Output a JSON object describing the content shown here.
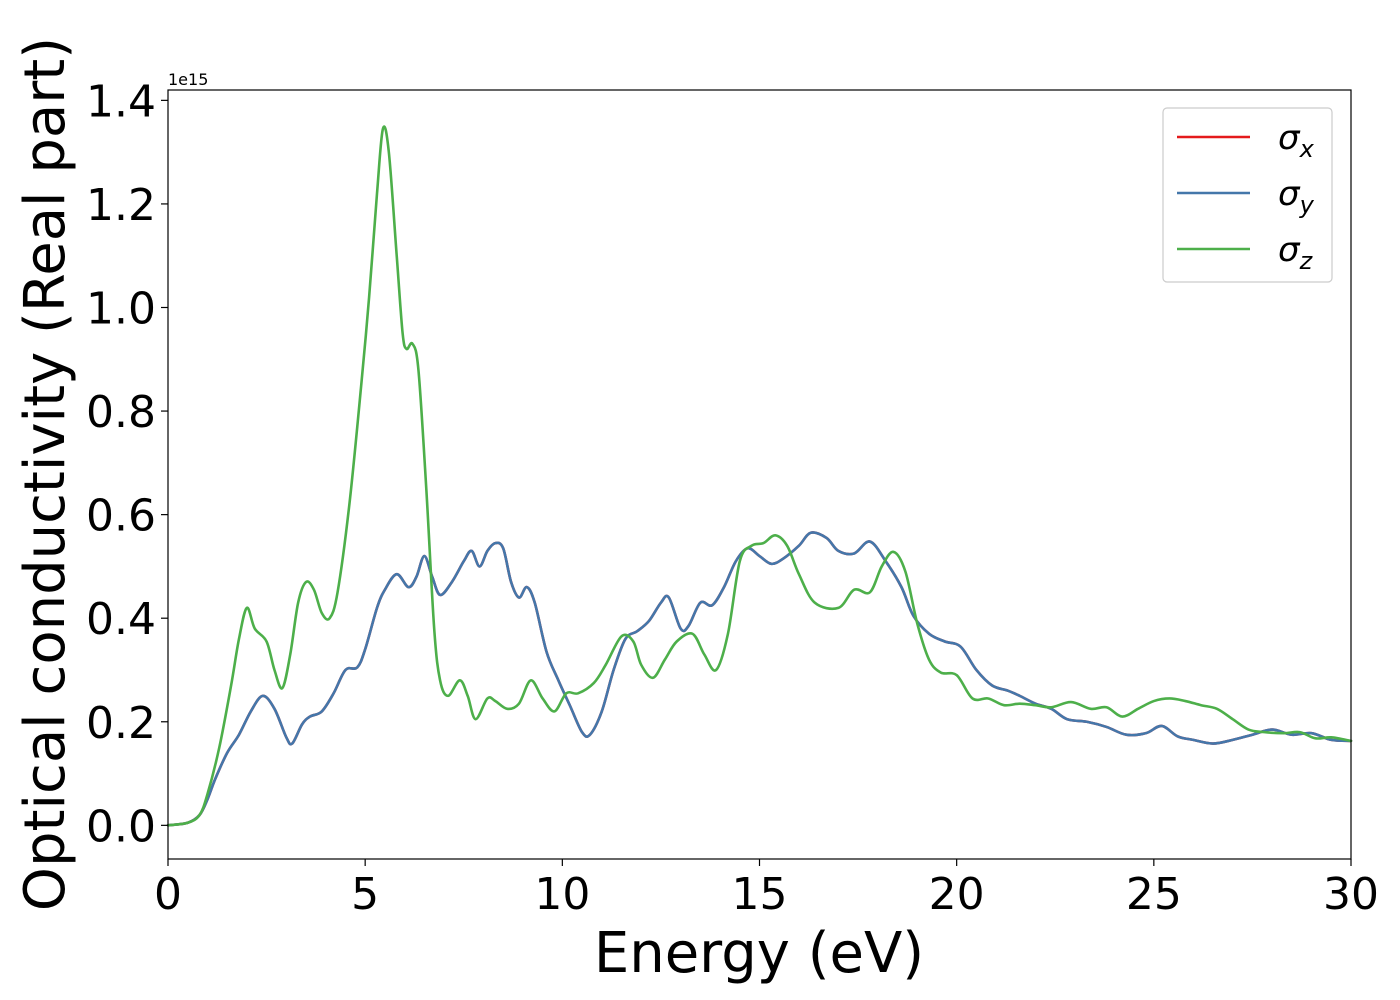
{
  "chart_data": {
    "type": "line",
    "xlabel": "Energy (eV)",
    "ylabel": "Optical conductivity (Real part)",
    "y_offset_text": "1e15",
    "xlim": [
      0,
      30
    ],
    "ylim": [
      -0.065,
      1.42
    ],
    "x_ticks": [
      0,
      5,
      10,
      15,
      20,
      25,
      30
    ],
    "y_ticks": [
      0.0,
      0.2,
      0.4,
      0.6,
      0.8,
      1.0,
      1.2,
      1.4
    ],
    "x_tick_labels": [
      "0",
      "5",
      "10",
      "15",
      "20",
      "25",
      "30"
    ],
    "y_tick_labels": [
      "0.0",
      "0.2",
      "0.4",
      "0.6",
      "0.8",
      "1.0",
      "1.2",
      "1.4"
    ],
    "grid": false,
    "legend_position": "top-right",
    "series": [
      {
        "name": "σx",
        "legend_symbol": "σ",
        "legend_subscript": "x",
        "color": "#e41a1c",
        "points": [
          [
            0,
            0.0
          ],
          [
            0.5,
            0.005
          ],
          [
            0.8,
            0.02
          ],
          [
            1.0,
            0.05
          ],
          [
            1.2,
            0.09
          ],
          [
            1.5,
            0.14
          ],
          [
            1.8,
            0.175
          ],
          [
            2.1,
            0.22
          ],
          [
            2.4,
            0.25
          ],
          [
            2.7,
            0.225
          ],
          [
            3.0,
            0.17
          ],
          [
            3.15,
            0.158
          ],
          [
            3.4,
            0.195
          ],
          [
            3.6,
            0.21
          ],
          [
            3.9,
            0.22
          ],
          [
            4.2,
            0.255
          ],
          [
            4.5,
            0.3
          ],
          [
            4.8,
            0.305
          ],
          [
            5.0,
            0.34
          ],
          [
            5.3,
            0.42
          ],
          [
            5.5,
            0.455
          ],
          [
            5.8,
            0.485
          ],
          [
            6.1,
            0.46
          ],
          [
            6.3,
            0.48
          ],
          [
            6.5,
            0.52
          ],
          [
            6.7,
            0.48
          ],
          [
            6.9,
            0.445
          ],
          [
            7.2,
            0.47
          ],
          [
            7.5,
            0.51
          ],
          [
            7.7,
            0.53
          ],
          [
            7.9,
            0.5
          ],
          [
            8.1,
            0.53
          ],
          [
            8.3,
            0.545
          ],
          [
            8.5,
            0.535
          ],
          [
            8.7,
            0.47
          ],
          [
            8.9,
            0.44
          ],
          [
            9.1,
            0.46
          ],
          [
            9.3,
            0.43
          ],
          [
            9.6,
            0.335
          ],
          [
            9.9,
            0.28
          ],
          [
            10.2,
            0.23
          ],
          [
            10.5,
            0.18
          ],
          [
            10.7,
            0.175
          ],
          [
            11.0,
            0.22
          ],
          [
            11.3,
            0.3
          ],
          [
            11.6,
            0.36
          ],
          [
            11.9,
            0.375
          ],
          [
            12.2,
            0.395
          ],
          [
            12.5,
            0.43
          ],
          [
            12.7,
            0.44
          ],
          [
            13.0,
            0.38
          ],
          [
            13.2,
            0.385
          ],
          [
            13.5,
            0.43
          ],
          [
            13.8,
            0.425
          ],
          [
            14.1,
            0.46
          ],
          [
            14.4,
            0.51
          ],
          [
            14.7,
            0.535
          ],
          [
            15.0,
            0.52
          ],
          [
            15.3,
            0.505
          ],
          [
            15.6,
            0.515
          ],
          [
            16.0,
            0.54
          ],
          [
            16.3,
            0.565
          ],
          [
            16.7,
            0.555
          ],
          [
            17.0,
            0.53
          ],
          [
            17.4,
            0.525
          ],
          [
            17.8,
            0.548
          ],
          [
            18.2,
            0.51
          ],
          [
            18.6,
            0.46
          ],
          [
            18.9,
            0.405
          ],
          [
            19.3,
            0.37
          ],
          [
            19.7,
            0.355
          ],
          [
            20.1,
            0.345
          ],
          [
            20.5,
            0.3
          ],
          [
            20.9,
            0.27
          ],
          [
            21.3,
            0.26
          ],
          [
            21.6,
            0.25
          ],
          [
            22.0,
            0.235
          ],
          [
            22.4,
            0.225
          ],
          [
            22.8,
            0.205
          ],
          [
            23.3,
            0.2
          ],
          [
            23.8,
            0.19
          ],
          [
            24.3,
            0.175
          ],
          [
            24.8,
            0.178
          ],
          [
            25.2,
            0.192
          ],
          [
            25.6,
            0.172
          ],
          [
            26.0,
            0.165
          ],
          [
            26.5,
            0.158
          ],
          [
            27.0,
            0.165
          ],
          [
            27.5,
            0.175
          ],
          [
            28.0,
            0.185
          ],
          [
            28.5,
            0.175
          ],
          [
            29.0,
            0.178
          ],
          [
            29.5,
            0.165
          ],
          [
            30.0,
            0.163
          ]
        ]
      },
      {
        "name": "σy",
        "legend_symbol": "σ",
        "legend_subscript": "y",
        "color": "#4477aa",
        "points": [
          [
            0,
            0.0
          ],
          [
            0.5,
            0.005
          ],
          [
            0.8,
            0.02
          ],
          [
            1.0,
            0.05
          ],
          [
            1.2,
            0.09
          ],
          [
            1.5,
            0.14
          ],
          [
            1.8,
            0.175
          ],
          [
            2.1,
            0.22
          ],
          [
            2.4,
            0.25
          ],
          [
            2.7,
            0.225
          ],
          [
            3.0,
            0.17
          ],
          [
            3.15,
            0.158
          ],
          [
            3.4,
            0.195
          ],
          [
            3.6,
            0.21
          ],
          [
            3.9,
            0.22
          ],
          [
            4.2,
            0.255
          ],
          [
            4.5,
            0.3
          ],
          [
            4.8,
            0.305
          ],
          [
            5.0,
            0.34
          ],
          [
            5.3,
            0.42
          ],
          [
            5.5,
            0.455
          ],
          [
            5.8,
            0.485
          ],
          [
            6.1,
            0.46
          ],
          [
            6.3,
            0.48
          ],
          [
            6.5,
            0.52
          ],
          [
            6.7,
            0.48
          ],
          [
            6.9,
            0.445
          ],
          [
            7.2,
            0.47
          ],
          [
            7.5,
            0.51
          ],
          [
            7.7,
            0.53
          ],
          [
            7.9,
            0.5
          ],
          [
            8.1,
            0.53
          ],
          [
            8.3,
            0.545
          ],
          [
            8.5,
            0.535
          ],
          [
            8.7,
            0.47
          ],
          [
            8.9,
            0.44
          ],
          [
            9.1,
            0.46
          ],
          [
            9.3,
            0.43
          ],
          [
            9.6,
            0.335
          ],
          [
            9.9,
            0.28
          ],
          [
            10.2,
            0.23
          ],
          [
            10.5,
            0.18
          ],
          [
            10.7,
            0.175
          ],
          [
            11.0,
            0.22
          ],
          [
            11.3,
            0.3
          ],
          [
            11.6,
            0.36
          ],
          [
            11.9,
            0.375
          ],
          [
            12.2,
            0.395
          ],
          [
            12.5,
            0.43
          ],
          [
            12.7,
            0.44
          ],
          [
            13.0,
            0.38
          ],
          [
            13.2,
            0.385
          ],
          [
            13.5,
            0.43
          ],
          [
            13.8,
            0.425
          ],
          [
            14.1,
            0.46
          ],
          [
            14.4,
            0.51
          ],
          [
            14.7,
            0.535
          ],
          [
            15.0,
            0.52
          ],
          [
            15.3,
            0.505
          ],
          [
            15.6,
            0.515
          ],
          [
            16.0,
            0.54
          ],
          [
            16.3,
            0.565
          ],
          [
            16.7,
            0.555
          ],
          [
            17.0,
            0.53
          ],
          [
            17.4,
            0.525
          ],
          [
            17.8,
            0.548
          ],
          [
            18.2,
            0.51
          ],
          [
            18.6,
            0.46
          ],
          [
            18.9,
            0.405
          ],
          [
            19.3,
            0.37
          ],
          [
            19.7,
            0.355
          ],
          [
            20.1,
            0.345
          ],
          [
            20.5,
            0.3
          ],
          [
            20.9,
            0.27
          ],
          [
            21.3,
            0.26
          ],
          [
            21.6,
            0.25
          ],
          [
            22.0,
            0.235
          ],
          [
            22.4,
            0.225
          ],
          [
            22.8,
            0.205
          ],
          [
            23.3,
            0.2
          ],
          [
            23.8,
            0.19
          ],
          [
            24.3,
            0.175
          ],
          [
            24.8,
            0.178
          ],
          [
            25.2,
            0.192
          ],
          [
            25.6,
            0.172
          ],
          [
            26.0,
            0.165
          ],
          [
            26.5,
            0.158
          ],
          [
            27.0,
            0.165
          ],
          [
            27.5,
            0.175
          ],
          [
            28.0,
            0.185
          ],
          [
            28.5,
            0.175
          ],
          [
            29.0,
            0.178
          ],
          [
            29.5,
            0.165
          ],
          [
            30.0,
            0.163
          ]
        ]
      },
      {
        "name": "σz",
        "legend_symbol": "σ",
        "legend_subscript": "z",
        "color": "#4daf4a",
        "points": [
          [
            0,
            0.0
          ],
          [
            0.5,
            0.005
          ],
          [
            0.8,
            0.02
          ],
          [
            1.0,
            0.06
          ],
          [
            1.3,
            0.15
          ],
          [
            1.6,
            0.27
          ],
          [
            1.8,
            0.36
          ],
          [
            2.0,
            0.42
          ],
          [
            2.2,
            0.38
          ],
          [
            2.5,
            0.355
          ],
          [
            2.7,
            0.3
          ],
          [
            2.9,
            0.265
          ],
          [
            3.1,
            0.33
          ],
          [
            3.3,
            0.43
          ],
          [
            3.5,
            0.47
          ],
          [
            3.7,
            0.455
          ],
          [
            3.9,
            0.41
          ],
          [
            4.1,
            0.4
          ],
          [
            4.3,
            0.45
          ],
          [
            4.6,
            0.62
          ],
          [
            4.9,
            0.85
          ],
          [
            5.1,
            1.02
          ],
          [
            5.3,
            1.22
          ],
          [
            5.45,
            1.345
          ],
          [
            5.6,
            1.3
          ],
          [
            5.8,
            1.1
          ],
          [
            5.95,
            0.95
          ],
          [
            6.05,
            0.92
          ],
          [
            6.2,
            0.93
          ],
          [
            6.35,
            0.88
          ],
          [
            6.55,
            0.65
          ],
          [
            6.75,
            0.38
          ],
          [
            6.9,
            0.28
          ],
          [
            7.1,
            0.25
          ],
          [
            7.4,
            0.28
          ],
          [
            7.6,
            0.25
          ],
          [
            7.8,
            0.205
          ],
          [
            8.1,
            0.245
          ],
          [
            8.3,
            0.24
          ],
          [
            8.6,
            0.225
          ],
          [
            8.9,
            0.235
          ],
          [
            9.2,
            0.28
          ],
          [
            9.5,
            0.245
          ],
          [
            9.8,
            0.22
          ],
          [
            10.1,
            0.255
          ],
          [
            10.4,
            0.255
          ],
          [
            10.8,
            0.275
          ],
          [
            11.1,
            0.31
          ],
          [
            11.5,
            0.365
          ],
          [
            11.8,
            0.355
          ],
          [
            12.0,
            0.31
          ],
          [
            12.3,
            0.285
          ],
          [
            12.6,
            0.32
          ],
          [
            12.9,
            0.355
          ],
          [
            13.3,
            0.37
          ],
          [
            13.6,
            0.33
          ],
          [
            13.9,
            0.3
          ],
          [
            14.2,
            0.37
          ],
          [
            14.5,
            0.51
          ],
          [
            14.8,
            0.54
          ],
          [
            15.1,
            0.545
          ],
          [
            15.4,
            0.56
          ],
          [
            15.7,
            0.54
          ],
          [
            16.0,
            0.485
          ],
          [
            16.4,
            0.43
          ],
          [
            17.0,
            0.42
          ],
          [
            17.4,
            0.455
          ],
          [
            17.8,
            0.45
          ],
          [
            18.1,
            0.5
          ],
          [
            18.4,
            0.528
          ],
          [
            18.7,
            0.49
          ],
          [
            19.0,
            0.39
          ],
          [
            19.3,
            0.32
          ],
          [
            19.6,
            0.295
          ],
          [
            20.0,
            0.29
          ],
          [
            20.4,
            0.245
          ],
          [
            20.8,
            0.245
          ],
          [
            21.2,
            0.232
          ],
          [
            21.6,
            0.235
          ],
          [
            22.0,
            0.232
          ],
          [
            22.4,
            0.228
          ],
          [
            22.9,
            0.238
          ],
          [
            23.4,
            0.225
          ],
          [
            23.8,
            0.228
          ],
          [
            24.2,
            0.21
          ],
          [
            24.6,
            0.225
          ],
          [
            25.0,
            0.24
          ],
          [
            25.4,
            0.245
          ],
          [
            25.8,
            0.24
          ],
          [
            26.2,
            0.232
          ],
          [
            26.6,
            0.225
          ],
          [
            27.0,
            0.205
          ],
          [
            27.4,
            0.185
          ],
          [
            27.8,
            0.18
          ],
          [
            28.3,
            0.178
          ],
          [
            28.7,
            0.18
          ],
          [
            29.1,
            0.168
          ],
          [
            29.5,
            0.17
          ],
          [
            30.0,
            0.163
          ]
        ]
      }
    ]
  }
}
